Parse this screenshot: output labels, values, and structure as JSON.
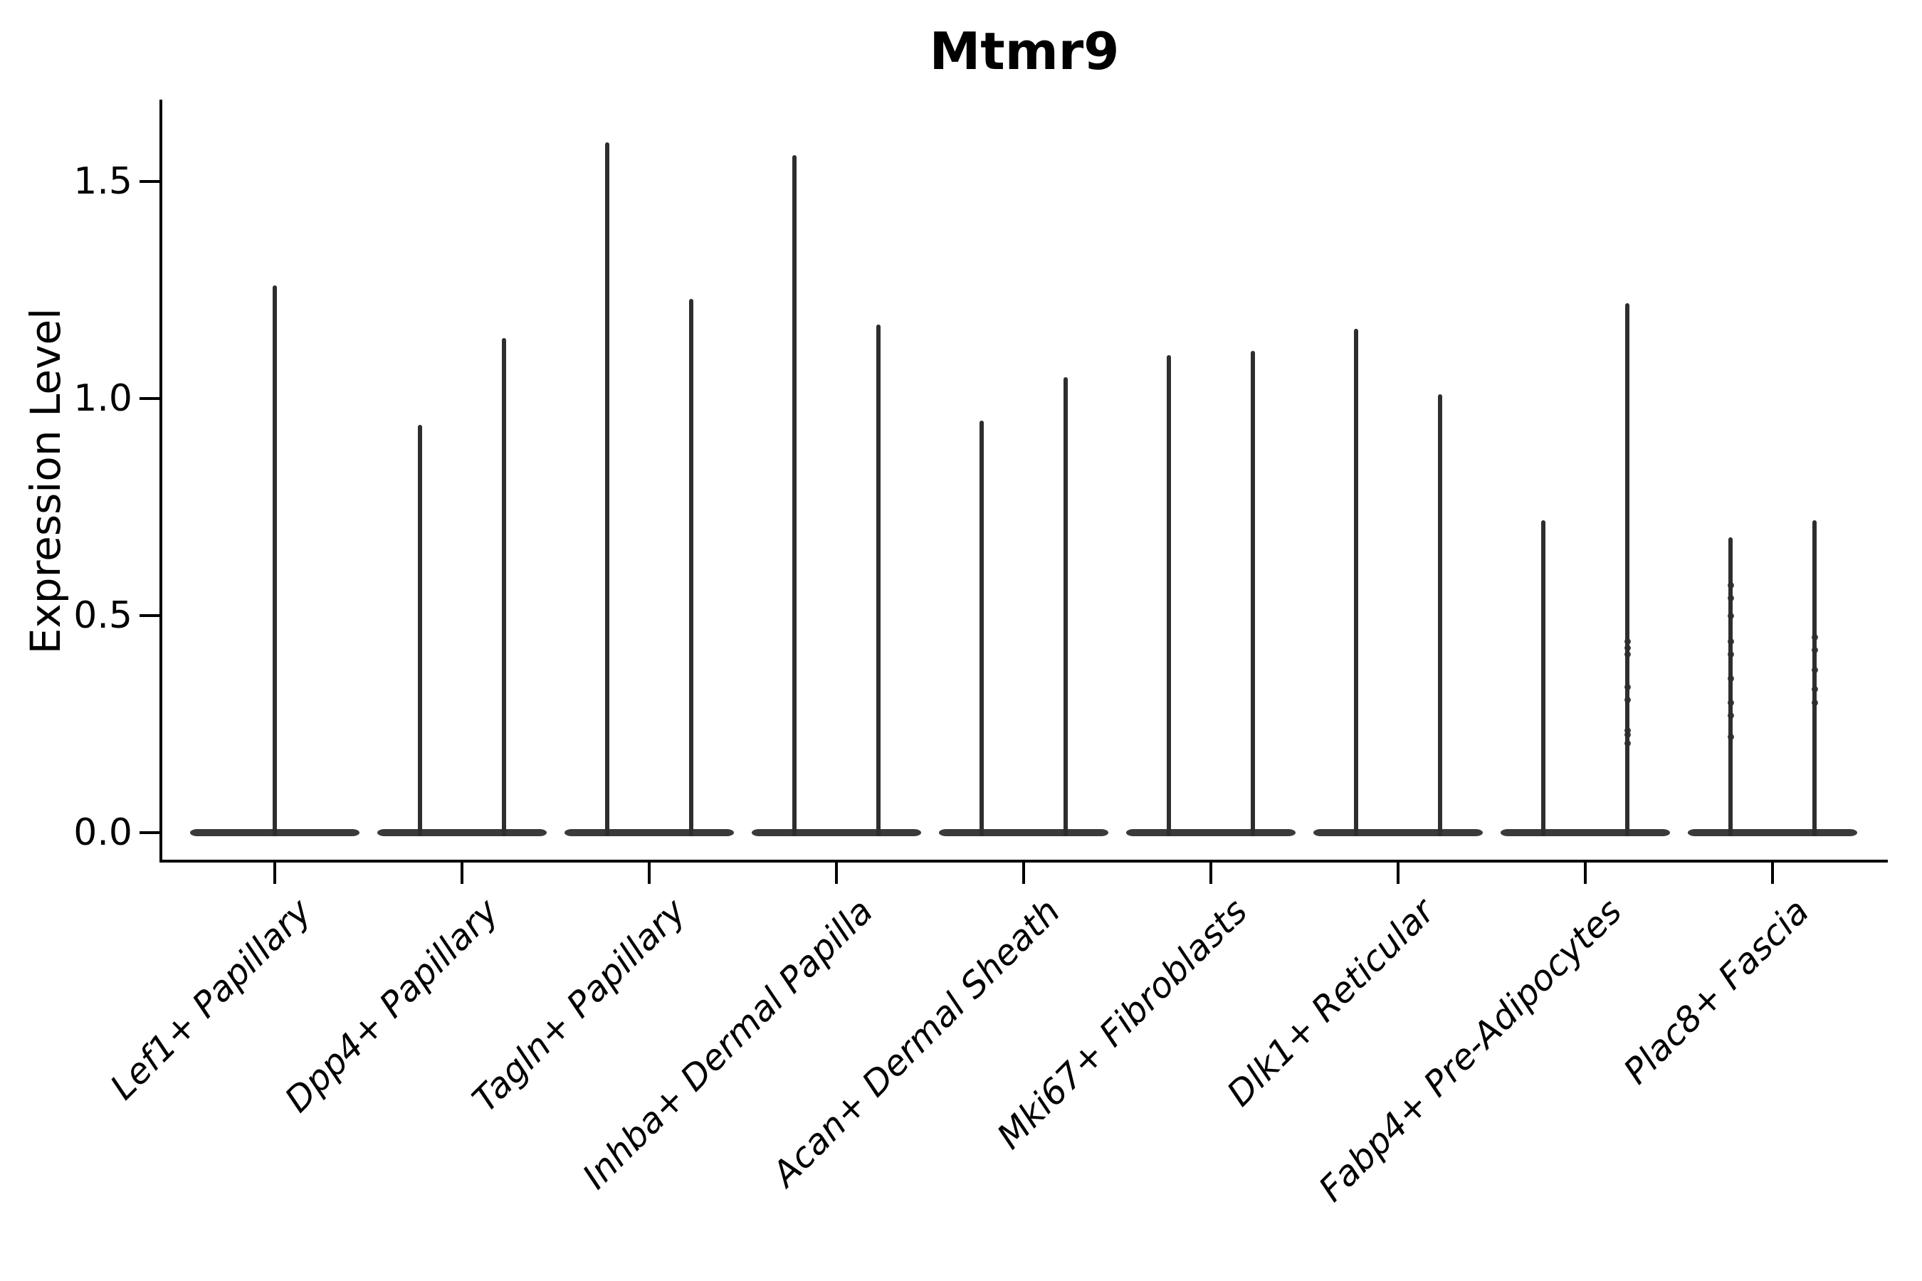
{
  "figure": {
    "title": "Mtmr9",
    "ylabel": "Expression Level",
    "ink_color": "#000000",
    "violin_color": "#2e2e2e",
    "background": "#ffffff"
  },
  "chart_data": {
    "type": "violin",
    "title": "Mtmr9",
    "xlabel": "",
    "ylabel": "Expression Level",
    "ylim": [
      -0.07,
      1.73
    ],
    "yticks": [
      "0.0",
      "0.5",
      "1.0",
      "1.5"
    ],
    "ytick_values": [
      0.0,
      0.5,
      1.0,
      1.5
    ],
    "grid": false,
    "legend": "none",
    "style_note": "single-cell expression violins: almost all mass at 0 (flat wide base), one thin spike per violin up to its max; two violins per category except the first which has one centered violin; x labels italic rotated 45deg",
    "categories": [
      "Lef1+ Papillary",
      "Dpp4+ Papillary",
      "Tagln+ Papillary",
      "Inhba+ Dermal Papilla",
      "Acan+ Dermal Sheath",
      "Mki67+ Fibroblasts",
      "Dlk1+ Reticular",
      "Fabp4+ Pre-Adipocytes",
      "Plac8+ Fascia"
    ],
    "violins": [
      {
        "category": "Lef1+ Papillary",
        "spike_maxima": [
          1.26
        ],
        "dots": []
      },
      {
        "category": "Dpp4+ Papillary",
        "spike_maxima": [
          0.94,
          1.14
        ],
        "dots": []
      },
      {
        "category": "Tagln+ Papillary",
        "spike_maxima": [
          1.59,
          1.23
        ],
        "dots": []
      },
      {
        "category": "Inhba+ Dermal Papilla",
        "spike_maxima": [
          1.56,
          1.17
        ],
        "dots": []
      },
      {
        "category": "Acan+ Dermal Sheath",
        "spike_maxima": [
          0.95,
          1.05
        ],
        "dots": []
      },
      {
        "category": "Mki67+ Fibroblasts",
        "spike_maxima": [
          1.1,
          1.11
        ],
        "dots": []
      },
      {
        "category": "Dlk1+ Reticular",
        "spike_maxima": [
          1.16,
          1.01
        ],
        "dots": []
      },
      {
        "category": "Fabp4+ Pre-Adipocytes",
        "spike_maxima": [
          0.72,
          1.22
        ],
        "dots": [
          [
            1,
            0.44
          ],
          [
            1,
            0.425
          ],
          [
            1,
            0.41
          ],
          [
            1,
            0.335
          ],
          [
            1,
            0.305
          ],
          [
            1,
            0.235
          ],
          [
            1,
            0.225
          ],
          [
            1,
            0.205
          ]
        ]
      },
      {
        "category": "Plac8+ Fascia",
        "spike_maxima": [
          0.68,
          0.72
        ],
        "dots": [
          [
            0,
            0.57
          ],
          [
            0,
            0.54
          ],
          [
            0,
            0.5
          ],
          [
            0,
            0.44
          ],
          [
            0,
            0.41
          ],
          [
            0,
            0.355
          ],
          [
            0,
            0.3
          ],
          [
            0,
            0.27
          ],
          [
            0,
            0.22
          ],
          [
            1,
            0.45
          ],
          [
            1,
            0.42
          ],
          [
            1,
            0.375
          ],
          [
            1,
            0.33
          ],
          [
            1,
            0.3
          ]
        ]
      }
    ]
  }
}
